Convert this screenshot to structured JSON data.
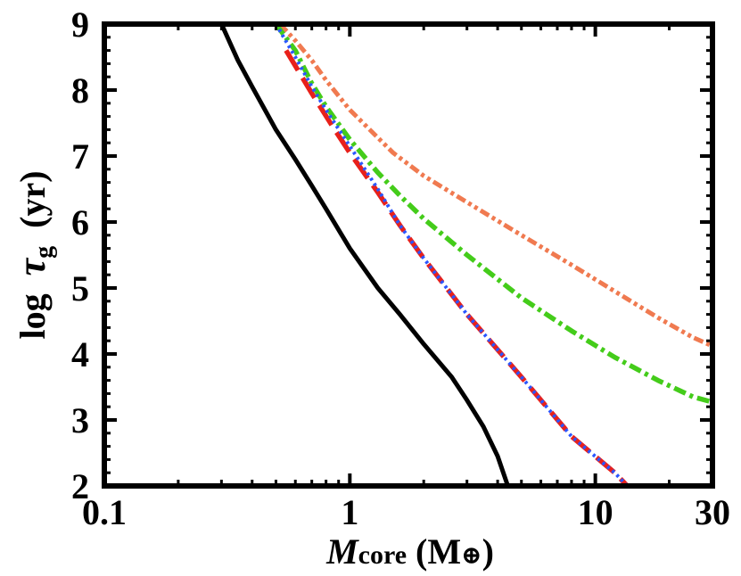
{
  "chart_data": {
    "type": "line",
    "title": "",
    "xscale": "log",
    "xlim": [
      0.1,
      30
    ],
    "ylim": [
      2,
      9
    ],
    "grid": false,
    "legend": "none",
    "xlabel": {
      "main": "M",
      "sub": "core",
      "unit_open": " (M",
      "unit_symbol": "⊕",
      "unit_close": ")"
    },
    "ylabel": {
      "prefix": "log  ",
      "main": "τ",
      "sub": "g",
      "suffix": "  (yr)"
    },
    "x_ticks": [
      {
        "value": 0.1,
        "label": "0.1"
      },
      {
        "value": 1,
        "label": "1"
      },
      {
        "value": 10,
        "label": "10"
      },
      {
        "value": 30,
        "label": "30"
      }
    ],
    "y_ticks": [
      {
        "value": 2,
        "label": "2"
      },
      {
        "value": 3,
        "label": "3"
      },
      {
        "value": 4,
        "label": "4"
      },
      {
        "value": 5,
        "label": "5"
      },
      {
        "value": 6,
        "label": "6"
      },
      {
        "value": 7,
        "label": "7"
      },
      {
        "value": 8,
        "label": "8"
      },
      {
        "value": 9,
        "label": "9"
      }
    ],
    "series": [
      {
        "name": "black-solid",
        "color": "#000000",
        "style": "solid",
        "x": [
          0.3,
          0.35,
          0.4,
          0.5,
          0.6,
          0.7,
          0.8,
          1.0,
          1.3,
          1.6,
          2.0,
          2.6,
          3.0,
          3.5,
          4.0,
          4.4
        ],
        "y": [
          9.0,
          8.45,
          8.05,
          7.4,
          6.95,
          6.55,
          6.2,
          5.6,
          5.0,
          4.6,
          4.15,
          3.65,
          3.3,
          2.9,
          2.45,
          2.0
        ]
      },
      {
        "name": "orange-dash-dot-dot",
        "color": "#f07a50",
        "style": "dashdotdot",
        "x": [
          0.52,
          0.6,
          0.7,
          0.8,
          1.0,
          1.5,
          2.0,
          3.0,
          5.0,
          8.0,
          12.0,
          18.0,
          25.0,
          30.0
        ],
        "y": [
          9.0,
          8.75,
          8.45,
          8.15,
          7.7,
          7.05,
          6.7,
          6.3,
          5.8,
          5.35,
          4.95,
          4.55,
          4.25,
          4.12
        ]
      },
      {
        "name": "green-dash-dot",
        "color": "#44cc1a",
        "style": "dashdot",
        "x": [
          0.5,
          0.6,
          0.7,
          0.8,
          1.0,
          1.3,
          1.6,
          2.0,
          3.0,
          5.0,
          8.0,
          12.0,
          18.0,
          25.0,
          30.0
        ],
        "y": [
          9.0,
          8.6,
          8.1,
          7.75,
          7.25,
          6.75,
          6.4,
          6.05,
          5.5,
          4.85,
          4.35,
          3.95,
          3.6,
          3.35,
          3.27
        ]
      },
      {
        "name": "red-dashed",
        "color": "#e8201a",
        "style": "dashed",
        "x": [
          0.55,
          0.7,
          0.85,
          1.0,
          1.3,
          1.6,
          2.0,
          3.0,
          5.0,
          8.0,
          12.0,
          13.5
        ],
        "y": [
          8.6,
          7.95,
          7.45,
          7.05,
          6.45,
          5.95,
          5.45,
          4.6,
          3.65,
          2.75,
          2.2,
          2.0
        ]
      },
      {
        "name": "blue-dotted",
        "color": "#2a56ff",
        "style": "dotted",
        "x": [
          0.5,
          0.6,
          0.7,
          0.8,
          1.0,
          1.3,
          1.6,
          2.0,
          3.0,
          5.0,
          8.0,
          12.0,
          13.5
        ],
        "y": [
          9.0,
          8.5,
          8.05,
          7.7,
          7.15,
          6.5,
          5.95,
          5.45,
          4.6,
          3.65,
          2.75,
          2.2,
          2.0
        ]
      }
    ]
  }
}
